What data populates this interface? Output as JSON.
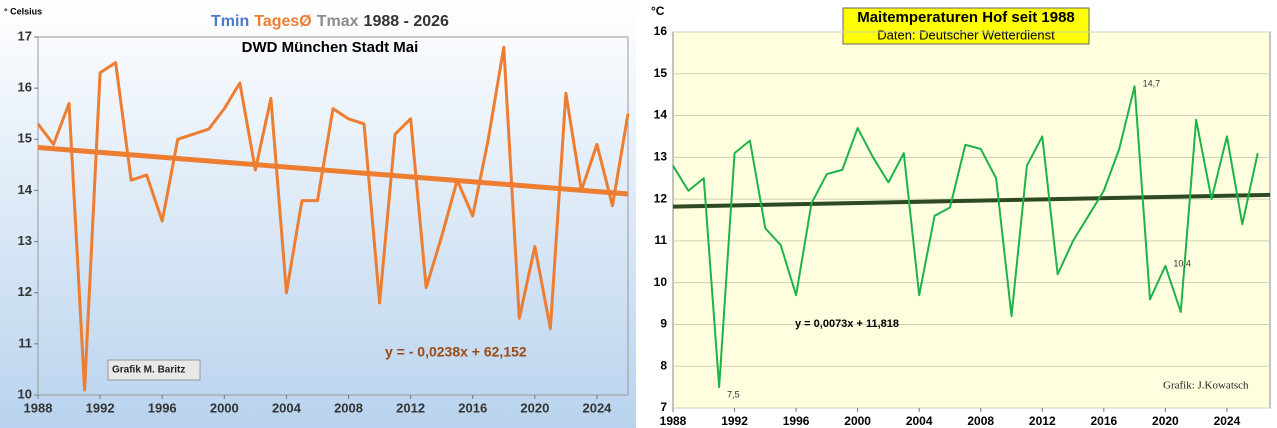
{
  "chart_data": [
    {
      "type": "line",
      "title": [
        "Tmin",
        "TagesØ",
        "Tmax",
        "1988 - 2026"
      ],
      "title_colors": [
        "#4a7bc8",
        "#ed7d31",
        "#8c8c8c",
        "#333333"
      ],
      "subtitle": "DWD München Stadt Mai",
      "ylabel": "° Celsius",
      "annotations": [
        "Grafik M. Baritz"
      ],
      "x": [
        1988,
        1989,
        1990,
        1991,
        1992,
        1993,
        1994,
        1995,
        1996,
        1997,
        1998,
        1999,
        2000,
        2001,
        2002,
        2003,
        2004,
        2005,
        2006,
        2007,
        2008,
        2009,
        2010,
        2011,
        2012,
        2013,
        2014,
        2015,
        2016,
        2017,
        2018,
        2019,
        2020,
        2021,
        2022,
        2023,
        2024,
        2025,
        2026
      ],
      "series": [
        {
          "color": "#ed7d31",
          "values": [
            15.3,
            14.9,
            15.7,
            10.1,
            16.3,
            16.5,
            14.2,
            14.3,
            13.4,
            15.0,
            15.1,
            15.2,
            15.6,
            16.1,
            14.4,
            15.8,
            12.0,
            13.8,
            13.8,
            15.6,
            15.4,
            15.3,
            11.8,
            15.1,
            15.4,
            12.1,
            13.1,
            14.2,
            13.5,
            15.0,
            16.8,
            11.5,
            12.9,
            11.3,
            15.9,
            14.0,
            14.9,
            13.7,
            15.5
          ]
        }
      ],
      "trend": {
        "label": "y = - 0,0238x + 62,152",
        "color": "#ed7d31",
        "x": [
          1988,
          2026
        ],
        "values": [
          14.84,
          13.93
        ]
      },
      "xlim": [
        1988,
        2026
      ],
      "xticks": [
        1988,
        1992,
        1996,
        2000,
        2004,
        2008,
        2012,
        2016,
        2020,
        2024
      ],
      "ylim": [
        10,
        17
      ],
      "yticks": [
        10,
        11,
        12,
        13,
        14,
        15,
        16,
        17
      ],
      "grid": false
    },
    {
      "type": "line",
      "title": [
        "Maitemperaturen Hof seit 1988"
      ],
      "title_colors": [
        "#000000"
      ],
      "subtitle": "Daten: Deutscher Wetterdienst",
      "ylabel": "°C",
      "annotations": [
        "Grafik: J.Kowatsch"
      ],
      "x": [
        1988,
        1989,
        1990,
        1991,
        1992,
        1993,
        1994,
        1995,
        1996,
        1997,
        1998,
        1999,
        2000,
        2001,
        2002,
        2003,
        2004,
        2005,
        2006,
        2007,
        2008,
        2009,
        2010,
        2011,
        2012,
        2013,
        2014,
        2015,
        2016,
        2017,
        2018,
        2019,
        2020,
        2021,
        2022,
        2023,
        2024,
        2025,
        2026
      ],
      "series": [
        {
          "color": "#1db34a",
          "values": [
            12.8,
            12.2,
            12.5,
            7.5,
            13.1,
            13.4,
            11.3,
            10.9,
            9.7,
            11.9,
            12.6,
            12.7,
            13.7,
            13.0,
            12.4,
            13.1,
            9.7,
            11.6,
            11.8,
            13.3,
            13.2,
            12.5,
            9.2,
            12.8,
            13.5,
            10.2,
            11.0,
            11.6,
            12.2,
            13.2,
            14.7,
            9.6,
            10.4,
            9.3,
            13.9,
            12.0,
            13.5,
            11.4,
            13.1
          ],
          "value_labels": [
            null,
            null,
            null,
            "7,5",
            null,
            null,
            null,
            null,
            null,
            null,
            null,
            null,
            null,
            null,
            null,
            null,
            null,
            null,
            null,
            null,
            null,
            null,
            null,
            null,
            null,
            null,
            null,
            null,
            null,
            null,
            "14,7",
            null,
            "10,4",
            null,
            null,
            null,
            null,
            null,
            null
          ]
        }
      ],
      "trend": {
        "label": "y = 0,0073x + 11,818",
        "color": "#2d4a25",
        "x": [
          1988,
          2026.8
        ],
        "values": [
          11.82,
          12.1
        ]
      },
      "xlim": [
        1988,
        2026.8
      ],
      "xticks": [
        1988,
        1992,
        1996,
        2000,
        2004,
        2008,
        2012,
        2016,
        2020,
        2024
      ],
      "ylim": [
        7,
        16
      ],
      "yticks": [
        7,
        8,
        9,
        10,
        11,
        12,
        13,
        14,
        15,
        16
      ],
      "grid": true
    }
  ]
}
